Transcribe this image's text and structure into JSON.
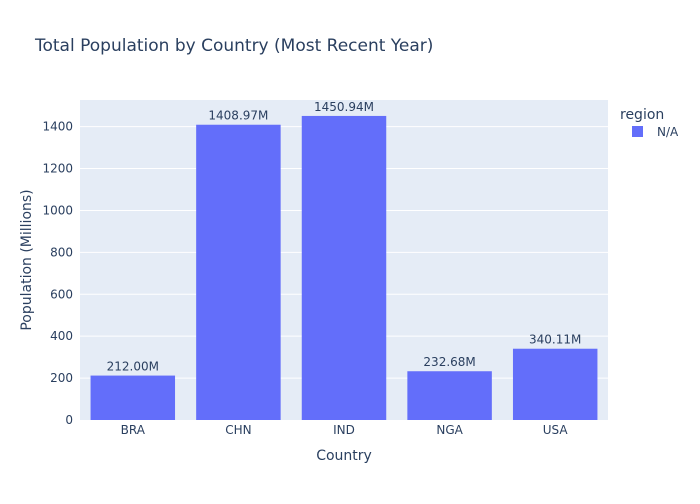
{
  "chart_data": {
    "type": "bar",
    "title": "Total Population by Country (Most Recent Year)",
    "xlabel": "Country",
    "ylabel": "Population (Millions)",
    "categories": [
      "BRA",
      "CHN",
      "IND",
      "NGA",
      "USA"
    ],
    "series": [
      {
        "name": "N/A",
        "values": [
          212.0,
          1408.97,
          1450.94,
          232.68,
          340.11
        ],
        "labels": [
          "212.00M",
          "1408.97M",
          "1450.94M",
          "232.68M",
          "340.11M"
        ],
        "color": "#636efa"
      }
    ],
    "ylim": [
      0,
      1527
    ],
    "yticks": [
      0,
      200,
      400,
      600,
      800,
      1000,
      1200,
      1400
    ],
    "grid": true,
    "legend": {
      "title": "region",
      "placement": "top-right"
    },
    "colors": {
      "plot_background": "#e5ecf6",
      "gridline": "#ffffff",
      "text": "#2a3f5f"
    }
  }
}
